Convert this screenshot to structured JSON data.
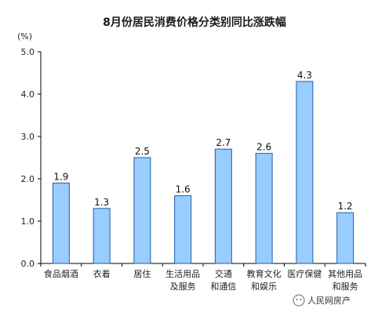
{
  "chart_data": {
    "type": "bar",
    "title": "8月份居民消费价格分类别同比涨跌幅",
    "unit": "(%)",
    "ylim": [
      0,
      5.0
    ],
    "yticks": [
      "0.0",
      "1.0",
      "2.0",
      "3.0",
      "4.0",
      "5.0"
    ],
    "grid": false,
    "categories": [
      [
        "食品烟酒"
      ],
      [
        "衣着"
      ],
      [
        "居住"
      ],
      [
        "生活用品",
        "及服务"
      ],
      [
        "交通",
        "和通信"
      ],
      [
        "教育文化",
        "和娱乐"
      ],
      [
        "医疗保健"
      ],
      [
        "其他用品",
        "和服务"
      ]
    ],
    "values": [
      1.9,
      1.3,
      2.5,
      1.6,
      2.7,
      2.6,
      4.3,
      1.2
    ],
    "value_labels": [
      "1.9",
      "1.3",
      "2.5",
      "1.6",
      "2.7",
      "2.6",
      "4.3",
      "1.2"
    ]
  },
  "watermark": {
    "text": "人民网房产"
  },
  "colors": {
    "bar_fill": "#99CCFF",
    "bar_stroke": "#1F5FA8",
    "axis": "#000000"
  }
}
